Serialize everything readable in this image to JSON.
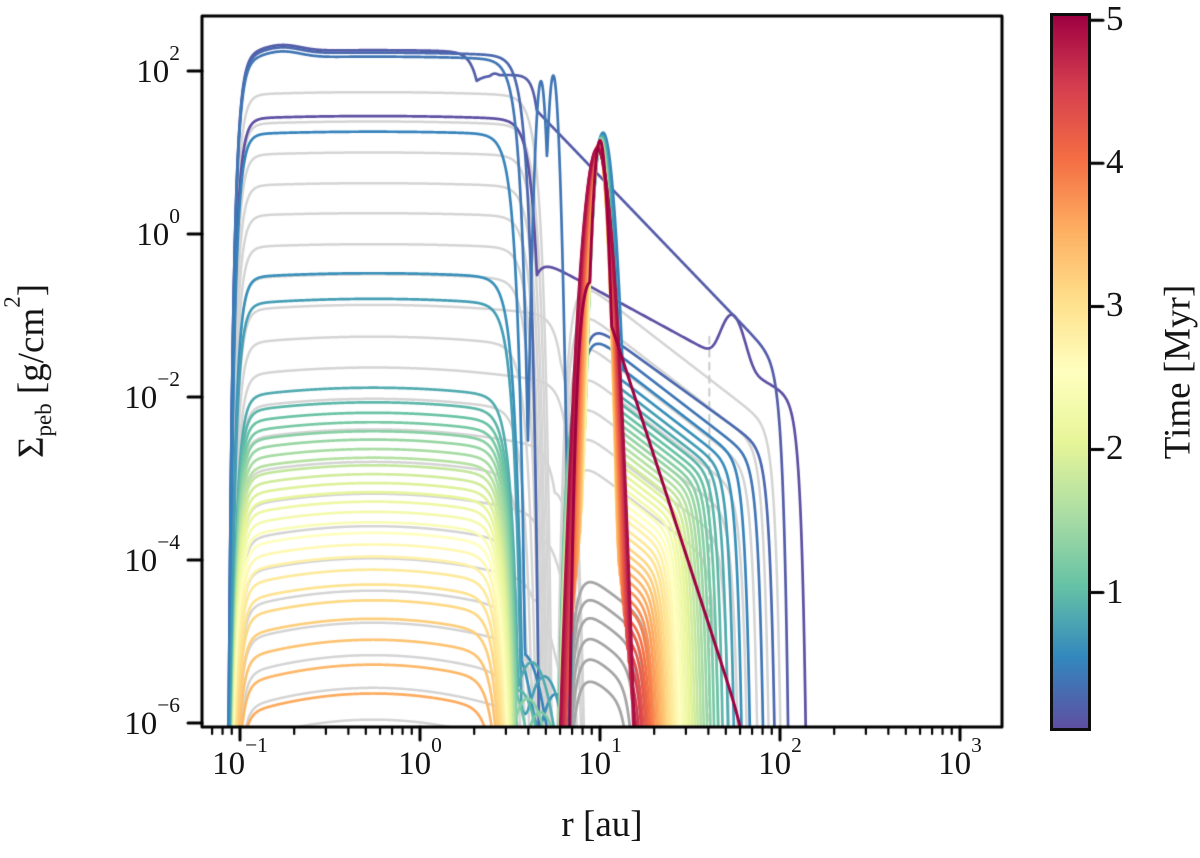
{
  "figure": {
    "background": "#ffffff"
  },
  "chart_data": {
    "type": "line",
    "title": "",
    "xlabel": "r [au]",
    "ylabel": "Σ_peb [g/cm²]",
    "ylabel_parts": {
      "sigma": "Σ",
      "sub": "peb",
      "mid": " [g/cm",
      "sup": "2",
      "end": "]"
    },
    "axes": {
      "xscale": "log",
      "yscale": "log",
      "xlim": [
        0.0615,
        1710
      ],
      "ylim": [
        9e-07,
        475
      ],
      "x_tick_exponents": [
        -1,
        0,
        1,
        2,
        3
      ],
      "y_tick_exponents": [
        2,
        0,
        -2,
        -4,
        -6
      ],
      "grid": false
    },
    "colorbar": {
      "label": "Time [Myr]",
      "tick_values": [
        1,
        2,
        3,
        4,
        5
      ],
      "vmin": 0.06,
      "vmax": 5.03,
      "colormap": "Spectral_r",
      "anchors": [
        [
          0.0,
          "#5e4fa2"
        ],
        [
          0.1,
          "#3288bd"
        ],
        [
          0.2,
          "#66c2a5"
        ],
        [
          0.3,
          "#abdda4"
        ],
        [
          0.4,
          "#e6f598"
        ],
        [
          0.5,
          "#ffffbf"
        ],
        [
          0.6,
          "#fee08b"
        ],
        [
          0.7,
          "#fdae61"
        ],
        [
          0.8,
          "#f46d43"
        ],
        [
          0.9,
          "#d53e4f"
        ],
        [
          1.0,
          "#9e0142"
        ]
      ]
    },
    "colors": {
      "spine": "#000000",
      "tick_label": "#141414",
      "gray_line": "#d4d4d4",
      "gray_dark": "#a6a6a6",
      "gray_dashed": "#cbcbcb",
      "background": "#ffffff"
    },
    "series_columns": [
      "time_Myr",
      "sigma_left_plateau",
      "r_cliff_au",
      "peak_sigma",
      "peak_logwidth",
      "peak_r_au",
      "sigma_at_15au",
      "r_outer_cliff_au"
    ],
    "series": [
      [
        0.05,
        28,
        3.9,
        0,
        0,
        0,
        0.12,
        121
      ],
      [
        0.16,
        180,
        2.1,
        0,
        0,
        0,
        2.0,
        96
      ],
      [
        0.27,
        168,
        3.5,
        0,
        0,
        0,
        0.035,
        82
      ],
      [
        0.39,
        150,
        3.2,
        0,
        0,
        0,
        0.025,
        71
      ],
      [
        0.5,
        18,
        3.0,
        17.5,
        0.03,
        10.4,
        0.018,
        60
      ],
      [
        0.61,
        0.33,
        2.96,
        16.5,
        0.027,
        10.3,
        0.013,
        54
      ],
      [
        0.73,
        0.16,
        2.93,
        16.0,
        0.025,
        10.3,
        0.01,
        49
      ],
      [
        0.84,
        0.013,
        2.9,
        15.6,
        0.024,
        10.2,
        0.008,
        45.5
      ],
      [
        0.95,
        0.0086,
        2.88,
        15.3,
        0.023,
        10.2,
        0.0065,
        42.5
      ],
      [
        1.06,
        0.0064,
        2.86,
        15.0,
        0.023,
        10.2,
        0.0053,
        40.2
      ],
      [
        1.17,
        0.0049,
        2.84,
        14.8,
        0.022,
        10.15,
        0.0044,
        38.2
      ],
      [
        1.29,
        0.0038,
        2.82,
        14.6,
        0.022,
        10.1,
        0.0036,
        36.5
      ],
      [
        1.4,
        0.003,
        2.8,
        14.4,
        0.022,
        10.1,
        0.003,
        35.0
      ],
      [
        1.51,
        0.0023,
        2.78,
        14.2,
        0.022,
        10.1,
        0.0025,
        33.6
      ],
      [
        1.62,
        0.0018,
        2.76,
        14.0,
        0.021,
        10.05,
        0.00205,
        32.4
      ],
      [
        1.74,
        0.00145,
        2.74,
        13.9,
        0.021,
        10.05,
        0.0017,
        31.2
      ],
      [
        1.85,
        0.00113,
        2.72,
        13.8,
        0.021,
        10.0,
        0.0014,
        30.1
      ],
      [
        1.96,
        0.00088,
        2.7,
        13.7,
        0.021,
        10.0,
        0.00115,
        29.1
      ],
      [
        2.07,
        0.00068,
        2.68,
        13.6,
        0.021,
        10.0,
        0.00094,
        28.2
      ],
      [
        2.19,
        0.00052,
        2.66,
        13.5,
        0.021,
        10.0,
        0.00077,
        27.3
      ],
      [
        2.3,
        0.00039,
        2.64,
        13.4,
        0.021,
        9.95,
        0.00063,
        26.5
      ],
      [
        2.41,
        0.00029,
        2.62,
        13.3,
        0.021,
        9.95,
        0.00051,
        25.7
      ],
      [
        2.52,
        0.000215,
        2.6,
        13.2,
        0.021,
        9.95,
        0.00041,
        25.0
      ],
      [
        2.64,
        0.000155,
        2.58,
        13.1,
        0.021,
        9.9,
        0.00033,
        24.3
      ],
      [
        2.75,
        0.00011,
        2.56,
        13.0,
        0.021,
        9.9,
        0.00027,
        23.6
      ],
      [
        2.86,
        7.6e-05,
        2.54,
        12.9,
        0.021,
        9.9,
        0.00021,
        23.0
      ],
      [
        2.97,
        5e-05,
        2.52,
        12.8,
        0.022,
        9.9,
        0.00017,
        22.4
      ],
      [
        3.09,
        3.2e-05,
        2.5,
        12.7,
        0.022,
        9.85,
        0.00013,
        21.8
      ],
      [
        3.2,
        1.9e-05,
        2.48,
        12.6,
        0.022,
        9.85,
        0.000105,
        21.2
      ],
      [
        3.31,
        1.05e-05,
        2.46,
        12.5,
        0.023,
        9.85,
        8.3e-05,
        20.7
      ],
      [
        3.42,
        5.2e-06,
        2.44,
        12.4,
        0.023,
        9.8,
        6.5e-05,
        20.2
      ],
      [
        3.54,
        2.3e-06,
        2.42,
        12.3,
        0.024,
        9.8,
        5.1e-05,
        19.7
      ],
      [
        3.65,
        0,
        0,
        12.2,
        0.025,
        9.8,
        4e-05,
        19.2
      ],
      [
        3.76,
        0,
        0,
        12.1,
        0.026,
        9.8,
        3.1e-05,
        18.7
      ],
      [
        3.87,
        0,
        0,
        12.0,
        0.027,
        9.75,
        2.4e-05,
        18.3
      ],
      [
        3.99,
        0,
        0,
        11.9,
        0.028,
        9.75,
        1.8e-05,
        17.9
      ],
      [
        4.1,
        0,
        0,
        11.8,
        0.029,
        9.75,
        1.4e-05,
        17.5
      ],
      [
        4.21,
        0,
        0,
        11.7,
        0.03,
        9.75,
        1.05e-05,
        17.1
      ],
      [
        4.32,
        0,
        0,
        11.6,
        0.031,
        9.7,
        8e-06,
        16.7
      ],
      [
        4.44,
        0,
        0,
        11.5,
        0.032,
        9.7,
        6e-06,
        16.4
      ],
      [
        4.55,
        0,
        0,
        11.4,
        0.033,
        9.7,
        4.5e-06,
        16.0
      ],
      [
        4.66,
        0,
        0,
        11.3,
        0.034,
        9.7,
        3.3e-06,
        15.7
      ],
      [
        4.77,
        0,
        0,
        11.2,
        0.035,
        9.65,
        2.4e-06,
        15.4
      ],
      [
        4.89,
        0,
        0,
        11.1,
        0.036,
        9.65,
        1.7e-06,
        15.1
      ],
      [
        5.0,
        0,
        0,
        14.0,
        0.02,
        10.0,
        0,
        0
      ]
    ],
    "series_specials": {
      "0": {
        "slope": 1.2,
        "bump_r": 55,
        "bump_amp": 3.0
      },
      "1": {
        "slope": 2.3,
        "shelf_sigma": 90,
        "shelf_r": 4.45
      },
      "2": {
        "slope": 1.6
      },
      "3": {
        "spikes": [
          [
            4.7,
            75
          ],
          [
            5.5,
            88
          ]
        ]
      },
      "44": {
        "red_tail": {
          "r0": 12,
          "sigma0": 0.06,
          "slope": 6.8,
          "r_max": 66
        }
      }
    },
    "gray_series_columns": [
      "sigma_left_plateau",
      "r_cliff_au",
      "r_outer_cliff_au",
      "sigma_at_15au"
    ],
    "gray_series": [
      [
        55,
        4.15,
        88,
        0.09
      ],
      [
        24,
        4.05,
        76,
        0.04
      ],
      [
        10,
        3.95,
        66,
        0.017
      ],
      [
        4.2,
        3.88,
        58,
        0.007
      ],
      [
        1.8,
        3.8,
        52,
        0.003
      ],
      [
        0.75,
        3.72,
        47,
        0.0013
      ],
      [
        0.32,
        3.65,
        41.5,
        0.00055
      ],
      [
        0.135,
        5.9,
        0,
        0
      ],
      [
        0.055,
        3.55,
        0,
        0
      ],
      [
        0.023,
        6.3,
        0,
        0
      ],
      [
        0.0095,
        3.45,
        0,
        0
      ],
      [
        0.004,
        5.5,
        0,
        0
      ],
      [
        0.0016,
        3.38,
        0,
        0
      ],
      [
        0.00065,
        4.9,
        0,
        0
      ],
      [
        0.00026,
        3.3,
        0,
        0
      ],
      [
        0.000105,
        4.5,
        0,
        0
      ],
      [
        4.2e-05,
        3.24,
        0,
        0
      ],
      [
        1.7e-05,
        4.2,
        0,
        0
      ],
      [
        6.8e-06,
        3.18,
        0,
        0
      ],
      [
        2.7e-06,
        3.9,
        0,
        0
      ],
      [
        1.1e-06,
        3.12,
        0,
        0
      ]
    ],
    "gray_peak_arcs": [
      [
        2.5e-05,
        18.5
      ],
      [
        1.5e-05,
        17.2
      ],
      [
        9e-06,
        16.2
      ],
      [
        5e-06,
        15.3
      ],
      [
        2.8e-06,
        14.5
      ],
      [
        1.5e-06,
        13.9
      ]
    ],
    "gray_dashed_line": {
      "r_au": 40.5,
      "sigma_top": 0.055,
      "sigma_bottom": 9e-07
    }
  }
}
